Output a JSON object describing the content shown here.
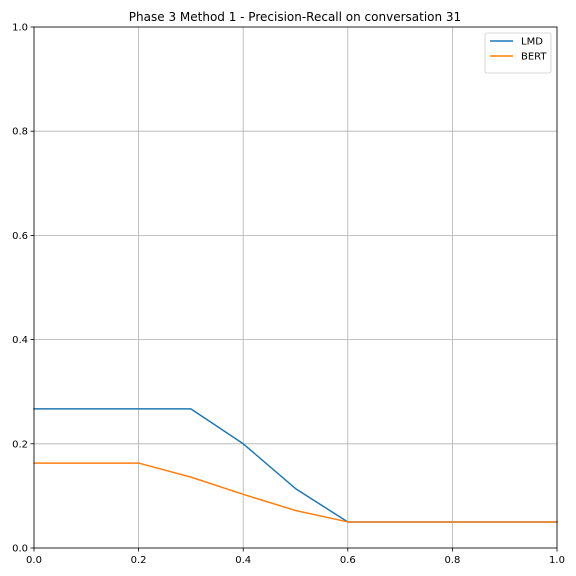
{
  "chart_data": {
    "type": "line",
    "title": "Phase 3 Method 1 - Precision-Recall on conversation 31",
    "xlabel": "",
    "ylabel": "",
    "xlim": [
      0.0,
      1.0
    ],
    "ylim": [
      0.0,
      1.0
    ],
    "xticks": [
      "0.0",
      "0.2",
      "0.4",
      "0.6",
      "0.8",
      "1.0"
    ],
    "yticks": [
      "0.0",
      "0.2",
      "0.4",
      "0.6",
      "0.8",
      "1.0"
    ],
    "grid": true,
    "legend_position": "top-right",
    "series": [
      {
        "name": "LMD",
        "color": "#1f77b4",
        "x": [
          0.0,
          0.1,
          0.2,
          0.3,
          0.4,
          0.5,
          0.6,
          0.7,
          0.8,
          0.9,
          1.0
        ],
        "y": [
          0.267,
          0.267,
          0.267,
          0.267,
          0.2,
          0.114,
          0.05,
          0.05,
          0.05,
          0.05,
          0.05
        ]
      },
      {
        "name": "BERT",
        "color": "#ff7f0e",
        "x": [
          0.0,
          0.1,
          0.2,
          0.3,
          0.4,
          0.5,
          0.6,
          0.7,
          0.8,
          0.9,
          1.0
        ],
        "y": [
          0.163,
          0.163,
          0.163,
          0.136,
          0.103,
          0.072,
          0.05,
          0.05,
          0.05,
          0.05,
          0.05
        ]
      }
    ]
  }
}
